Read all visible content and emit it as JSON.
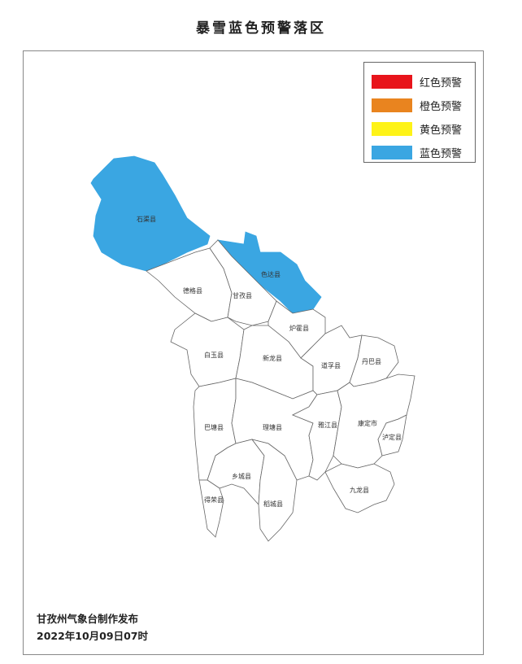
{
  "title": "暴雪蓝色预警落区",
  "legend": [
    {
      "label": "红色预警",
      "color": "#e8141b"
    },
    {
      "label": "橙色预警",
      "color": "#e9841f"
    },
    {
      "label": "黄色预警",
      "color": "#fef318"
    },
    {
      "label": "蓝色预警",
      "color": "#3aa6e2"
    }
  ],
  "counties": [
    {
      "name": "石渠县",
      "warning": "蓝色预警"
    },
    {
      "name": "色达县",
      "warning": "蓝色预警"
    },
    {
      "name": "德格县",
      "warning": ""
    },
    {
      "name": "甘孜县",
      "warning": ""
    },
    {
      "name": "炉霍县",
      "warning": ""
    },
    {
      "name": "白玉县",
      "warning": ""
    },
    {
      "name": "新龙县",
      "warning": ""
    },
    {
      "name": "道孚县",
      "warning": ""
    },
    {
      "name": "丹巴县",
      "warning": ""
    },
    {
      "name": "巴塘县",
      "warning": ""
    },
    {
      "name": "理塘县",
      "warning": ""
    },
    {
      "name": "雅江县",
      "warning": ""
    },
    {
      "name": "康定市",
      "warning": ""
    },
    {
      "name": "泸定县",
      "warning": ""
    },
    {
      "name": "九龙县",
      "warning": ""
    },
    {
      "name": "乡城县",
      "warning": ""
    },
    {
      "name": "稻城县",
      "warning": ""
    },
    {
      "name": "得荣县",
      "warning": ""
    }
  ],
  "footer": {
    "publisher": "甘孜州气象台制作发布",
    "datetime": "2022年10月09日07时"
  }
}
